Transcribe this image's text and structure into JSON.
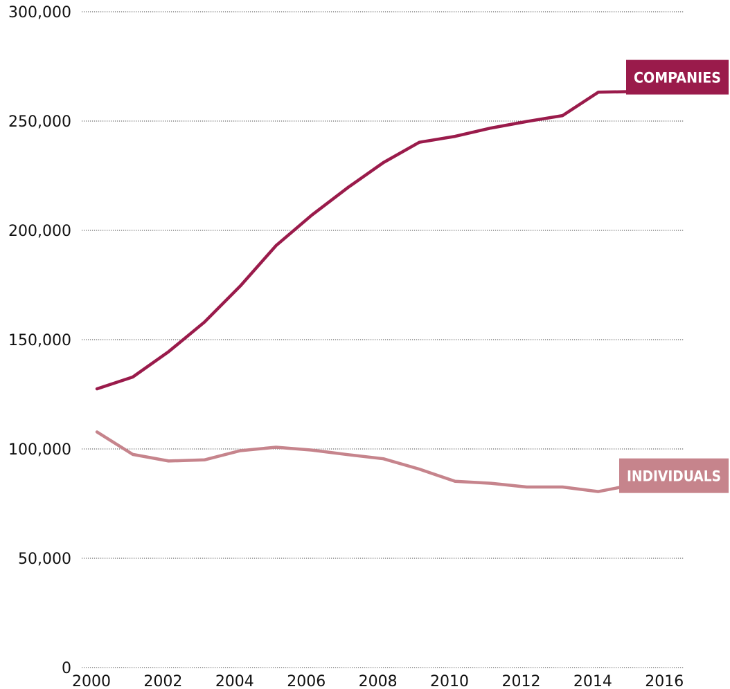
{
  "chart_data": {
    "type": "line",
    "title": "",
    "xlabel": "",
    "ylabel": "",
    "ylim": [
      0,
      300000
    ],
    "xlim": [
      2000,
      2017
    ],
    "grid": true,
    "x": [
      2000,
      2001,
      2002,
      2003,
      2004,
      2005,
      2006,
      2007,
      2008,
      2009,
      2010,
      2011,
      2012,
      2013,
      2014,
      2015,
      2016
    ],
    "x_ticks": [
      "2000",
      "2002",
      "2004",
      "2006",
      "2008",
      "2010",
      "2012",
      "2014",
      "2016"
    ],
    "y_ticks": [
      "0",
      "50,000",
      "100,000",
      "150,000",
      "200,000",
      "250,000",
      "300,000"
    ],
    "series": [
      {
        "name": "COMPANIES",
        "color": "#9a1b4b",
        "values": [
          127500,
          132900,
          144500,
          158000,
          174500,
          193000,
          207000,
          219500,
          231000,
          240300,
          243000,
          246800,
          249800,
          252500,
          263200,
          263500,
          268800
        ]
      },
      {
        "name": "INDIVIDUALS",
        "color": "#c6848c",
        "values": [
          107800,
          97500,
          94500,
          95000,
          99200,
          100800,
          99500,
          97400,
          95500,
          90800,
          85200,
          84300,
          82600,
          82600,
          80500,
          83700,
          86500
        ]
      }
    ]
  }
}
